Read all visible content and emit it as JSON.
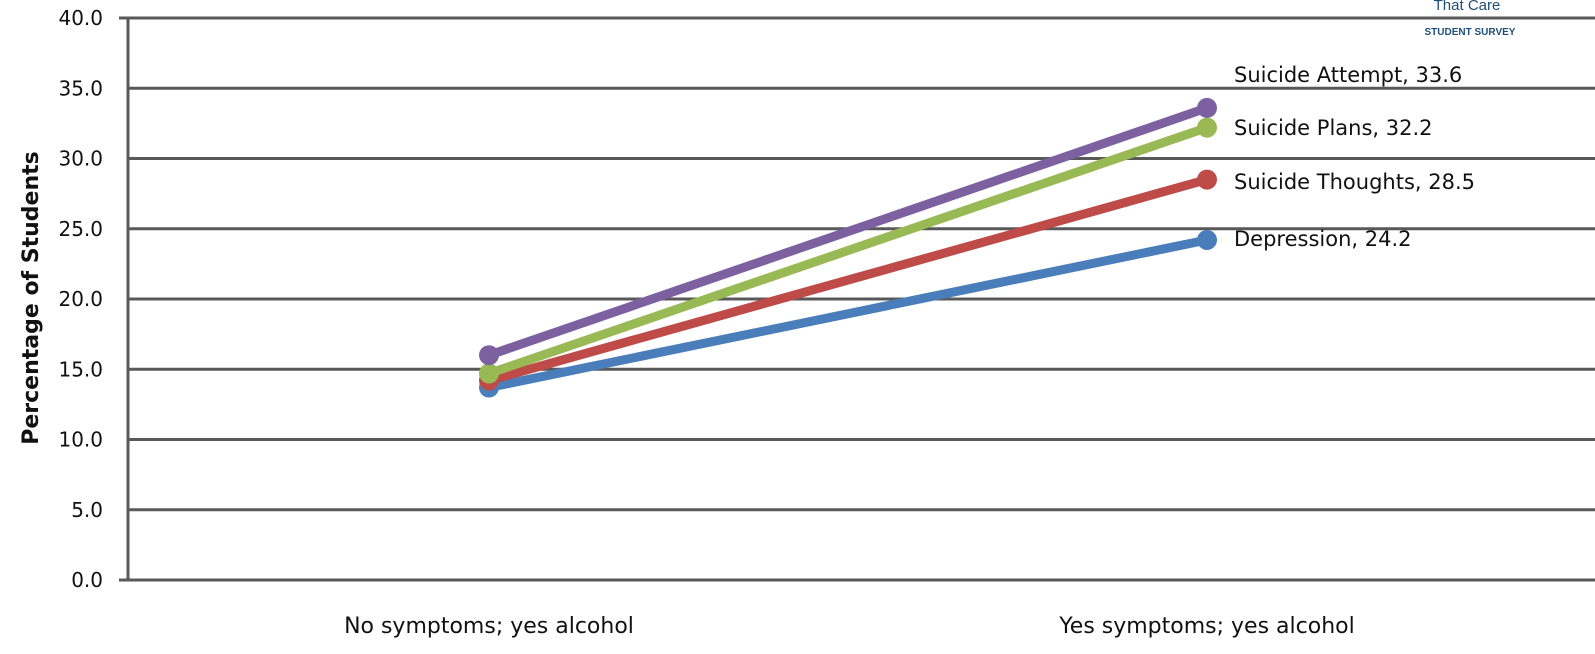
{
  "logo": {
    "line1": "That Care",
    "line2": "STUDENT SURVEY"
  },
  "chart_data": {
    "type": "line",
    "title": "",
    "xlabel": "",
    "ylabel": "Percentage of Students",
    "ylim": [
      0,
      40
    ],
    "yticks": [
      "0.0",
      "5.0",
      "10.0",
      "15.0",
      "20.0",
      "25.0",
      "30.0",
      "35.0",
      "40.0"
    ],
    "categories": [
      "No symptoms; yes alcohol",
      "Yes symptoms; yes alcohol"
    ],
    "grid": true,
    "series": [
      {
        "name": "Depression",
        "values": [
          13.7,
          24.2
        ],
        "color": "#4a7ebb",
        "label": "Depression, 24.2"
      },
      {
        "name": "Suicide Thoughts",
        "values": [
          14.2,
          28.5
        ],
        "color": "#be4b48",
        "label": "Suicide Thoughts, 28.5"
      },
      {
        "name": "Suicide Plans",
        "values": [
          14.7,
          32.2
        ],
        "color": "#98b954",
        "label": "Suicide Plans, 32.2"
      },
      {
        "name": "Suicide Attempt",
        "values": [
          16.0,
          33.6
        ],
        "color": "#7d60a0",
        "label": "Suicide Attempt, 33.6"
      }
    ],
    "colors": {
      "axis": "#595959",
      "grid": "#595959"
    }
  }
}
